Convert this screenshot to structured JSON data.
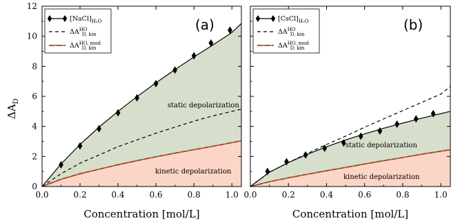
{
  "chart_data": [
    {
      "type": "line",
      "panel_label": "(a)",
      "xlabel": "Concentration [mol/L]",
      "ylabel": "ΔA_D",
      "xlim": [
        0.0,
        1.05
      ],
      "ylim": [
        0,
        12
      ],
      "xticks": [
        "0.0",
        "0.2",
        "0.4",
        "0.6",
        "0.8",
        "1.0"
      ],
      "yticks": [
        "0",
        "2",
        "4",
        "6",
        "8",
        "10",
        "12"
      ],
      "grid": false,
      "legend_position": "top-left",
      "legend": [
        {
          "base": "[NaCl]",
          "sub": "H₂O",
          "sup": "",
          "style": "marker-line"
        },
        {
          "base": "ΔA",
          "sub": "D, kin",
          "sup": "HO",
          "style": "dashed"
        },
        {
          "base": "ΔA",
          "sub": "D, kin",
          "sup": "HO, mod",
          "style": "red-green"
        }
      ],
      "annotations": [
        "static depolarization",
        "kinetic depolarization"
      ],
      "series": [
        {
          "style": "marker-line",
          "x": [
            0.1,
            0.2,
            0.3,
            0.4,
            0.5,
            0.6,
            0.7,
            0.8,
            0.89,
            0.99
          ],
          "y": [
            1.45,
            2.7,
            3.85,
            4.9,
            5.9,
            6.85,
            7.75,
            8.7,
            9.55,
            10.4
          ],
          "curve_x": [
            0,
            0.1,
            0.2,
            0.3,
            0.4,
            0.5,
            0.6,
            0.7,
            0.8,
            0.9,
            1.0,
            1.05
          ],
          "curve_y": [
            0,
            1.5,
            2.8,
            3.95,
            5.0,
            5.98,
            6.9,
            7.78,
            8.62,
            9.42,
            10.25,
            10.85
          ]
        },
        {
          "style": "dashed",
          "x": [
            0,
            0.1,
            0.2,
            0.3,
            0.4,
            0.5,
            0.6,
            0.7,
            0.8,
            0.9,
            1.0,
            1.05
          ],
          "y": [
            0,
            0.85,
            1.55,
            2.1,
            2.65,
            3.1,
            3.55,
            3.95,
            4.35,
            4.7,
            5.0,
            5.15
          ]
        },
        {
          "style": "red-green",
          "x": [
            0,
            0.1,
            0.2,
            0.3,
            0.4,
            0.5,
            0.6,
            0.7,
            0.8,
            0.9,
            1.0,
            1.05
          ],
          "y": [
            0,
            0.48,
            0.85,
            1.15,
            1.45,
            1.72,
            1.98,
            2.22,
            2.45,
            2.68,
            2.92,
            3.05
          ]
        }
      ]
    },
    {
      "type": "line",
      "panel_label": "(b)",
      "xlabel": "Concentration [mol/L]",
      "ylabel": "",
      "xlim": [
        0.0,
        1.05
      ],
      "ylim": [
        0,
        12
      ],
      "xticks": [
        "0.0",
        "0.2",
        "0.4",
        "0.6",
        "0.8",
        "1.0"
      ],
      "yticks": [],
      "grid": false,
      "legend_position": "top-left",
      "legend": [
        {
          "base": "[CsCl]",
          "sub": "H₂O",
          "sup": "",
          "style": "marker-line"
        },
        {
          "base": "ΔA",
          "sub": "D, kin",
          "sup": "HO",
          "style": "dashed"
        },
        {
          "base": "ΔA",
          "sub": "D, kin",
          "sup": "HO, mod",
          "style": "red-green"
        }
      ],
      "annotations": [
        "static depolarization",
        "kinetic depolarization"
      ],
      "series": [
        {
          "style": "marker-line",
          "x": [
            0.09,
            0.19,
            0.29,
            0.39,
            0.49,
            0.58,
            0.68,
            0.77,
            0.87,
            0.96
          ],
          "y": [
            1.0,
            1.65,
            2.1,
            2.55,
            2.9,
            3.35,
            3.7,
            4.15,
            4.5,
            4.85
          ],
          "curve_x": [
            0,
            0.1,
            0.2,
            0.3,
            0.4,
            0.5,
            0.6,
            0.7,
            0.8,
            0.9,
            1.0,
            1.05
          ],
          "curve_y": [
            0,
            0.95,
            1.6,
            2.15,
            2.65,
            3.1,
            3.5,
            3.88,
            4.22,
            4.55,
            4.85,
            5.0
          ]
        },
        {
          "style": "dashed",
          "x": [
            0,
            0.1,
            0.2,
            0.3,
            0.4,
            0.5,
            0.6,
            0.7,
            0.8,
            0.9,
            1.0,
            1.05
          ],
          "y": [
            0,
            0.95,
            1.6,
            2.2,
            2.8,
            3.35,
            3.95,
            4.5,
            5.05,
            5.6,
            6.15,
            6.65
          ]
        },
        {
          "style": "red-green",
          "x": [
            0,
            0.1,
            0.2,
            0.3,
            0.4,
            0.5,
            0.6,
            0.7,
            0.8,
            0.9,
            1.0,
            1.05
          ],
          "y": [
            0,
            0.32,
            0.58,
            0.82,
            1.05,
            1.27,
            1.5,
            1.72,
            1.93,
            2.15,
            2.35,
            2.45
          ]
        }
      ]
    }
  ],
  "colors": {
    "static_fill": "#d5dfcb",
    "kinetic_fill": "#fbd5c6",
    "mod_line_red": "#e31a1c",
    "mod_line_green": "#2f8f3a",
    "ink": "#000000"
  }
}
